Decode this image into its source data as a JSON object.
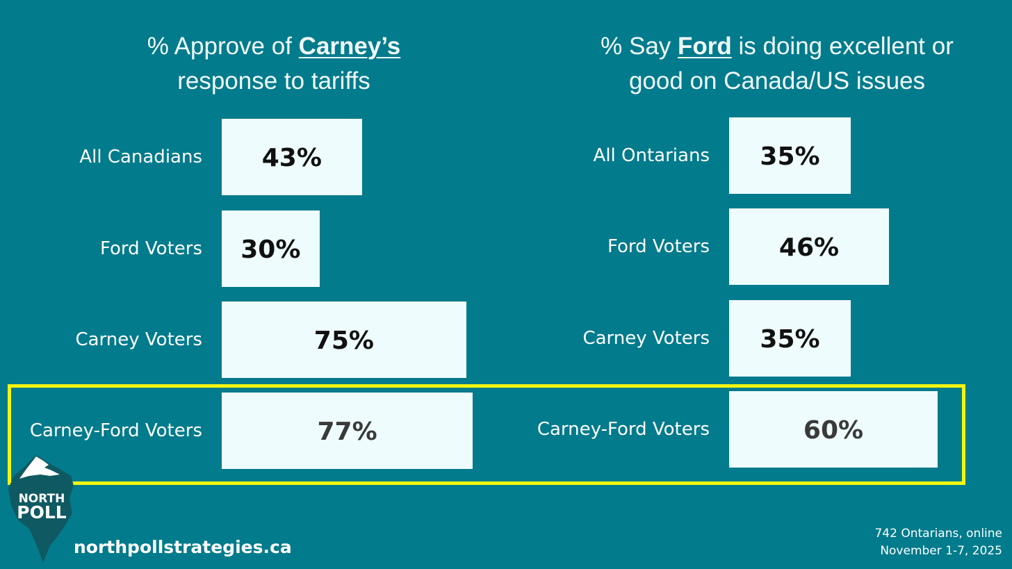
{
  "chart_data": [
    {
      "type": "bar",
      "orientation": "horizontal",
      "title_parts": [
        "% Approve of ",
        "Carney’s",
        " response to tariffs"
      ],
      "title_emphasis": "Carney’s",
      "categories": [
        "All Canadians",
        "Ford Voters",
        "Carney Voters",
        "Carney-Ford Voters"
      ],
      "values": [
        43,
        30,
        75,
        77
      ],
      "value_labels": [
        "43%",
        "30%",
        "75%",
        "77%"
      ],
      "xlim": [
        0,
        100
      ],
      "grid": false
    },
    {
      "type": "bar",
      "orientation": "horizontal",
      "title_parts": [
        "% Say ",
        "Ford",
        " is doing excellent or good on Canada/US issues"
      ],
      "title_emphasis": "Ford",
      "categories": [
        "All Ontarians",
        "Ford Voters",
        "Carney Voters",
        "Carney-Ford Voters"
      ],
      "values": [
        35,
        46,
        35,
        60
      ],
      "value_labels": [
        "35%",
        "46%",
        "35%",
        "60%"
      ],
      "xlim": [
        0,
        100
      ],
      "grid": false
    }
  ],
  "highlighted_category": "Carney-Ford Voters",
  "brand": {
    "logo_line1": "NORTH",
    "logo_line2": "POLL",
    "website": "northpollstrategies.ca"
  },
  "footnote": {
    "line1": "742 Ontarians, online",
    "line2": "November 1-7, 2025"
  },
  "colors": {
    "background": "#027b8c",
    "bar": "#effcfd",
    "highlight": "#f5f50f",
    "logo_dark": "#0f5962",
    "text": "#ffffff"
  }
}
